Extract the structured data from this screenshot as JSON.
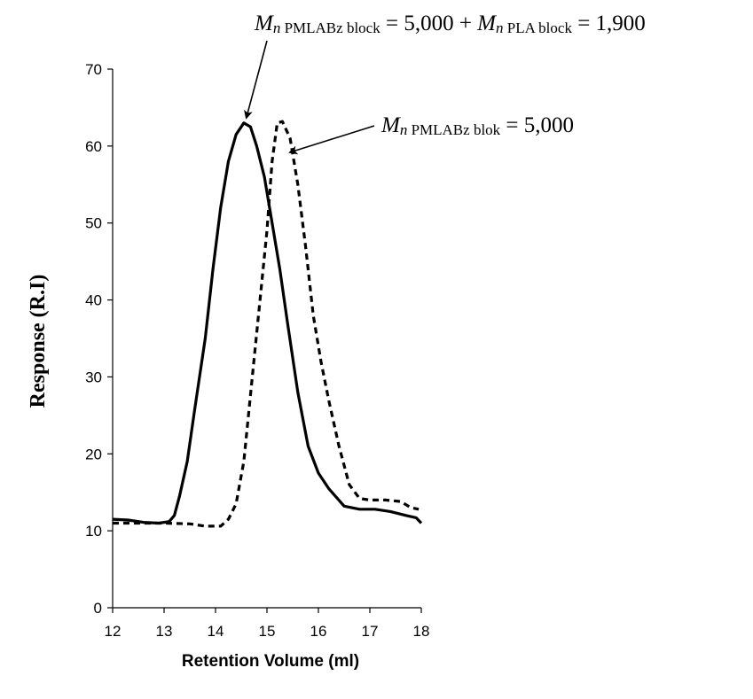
{
  "chart_data": {
    "type": "line",
    "xlabel": "Retention Volume (ml)",
    "ylabel": "Response (R.I)",
    "xlim": [
      12,
      18
    ],
    "ylim": [
      0,
      70
    ],
    "xticks": [
      "12",
      "13",
      "14",
      "15",
      "16",
      "17",
      "18"
    ],
    "yticks": [
      "0",
      "10",
      "20",
      "30",
      "40",
      "50",
      "60",
      "70"
    ],
    "grid": false,
    "series": [
      {
        "line_style": "solid",
        "color": "#000000",
        "points": [
          [
            12.0,
            11.5
          ],
          [
            12.3,
            11.4
          ],
          [
            12.6,
            11.1
          ],
          [
            12.9,
            11.0
          ],
          [
            13.1,
            11.2
          ],
          [
            13.2,
            12.0
          ],
          [
            13.3,
            14.5
          ],
          [
            13.45,
            19.0
          ],
          [
            13.6,
            26.0
          ],
          [
            13.8,
            35.0
          ],
          [
            13.95,
            44.0
          ],
          [
            14.1,
            52.0
          ],
          [
            14.25,
            58.0
          ],
          [
            14.4,
            61.5
          ],
          [
            14.55,
            63.0
          ],
          [
            14.68,
            62.5
          ],
          [
            14.8,
            60.0
          ],
          [
            14.95,
            56.0
          ],
          [
            15.1,
            50.0
          ],
          [
            15.25,
            44.0
          ],
          [
            15.4,
            37.0
          ],
          [
            15.6,
            28.0
          ],
          [
            15.8,
            21.0
          ],
          [
            16.0,
            17.5
          ],
          [
            16.2,
            15.5
          ],
          [
            16.5,
            13.2
          ],
          [
            16.8,
            12.8
          ],
          [
            17.1,
            12.8
          ],
          [
            17.4,
            12.5
          ],
          [
            17.7,
            12.0
          ],
          [
            17.9,
            11.7
          ],
          [
            18.0,
            11.0
          ]
        ]
      },
      {
        "line_style": "dashed",
        "color": "#000000",
        "points": [
          [
            12.0,
            11.0
          ],
          [
            12.5,
            11.0
          ],
          [
            13.0,
            11.0
          ],
          [
            13.5,
            10.9
          ],
          [
            13.8,
            10.6
          ],
          [
            14.1,
            10.6
          ],
          [
            14.25,
            11.5
          ],
          [
            14.4,
            13.5
          ],
          [
            14.55,
            19.0
          ],
          [
            14.7,
            29.0
          ],
          [
            14.85,
            39.0
          ],
          [
            15.0,
            49.0
          ],
          [
            15.1,
            58.0
          ],
          [
            15.2,
            63.0
          ],
          [
            15.3,
            63.2
          ],
          [
            15.45,
            61.0
          ],
          [
            15.6,
            55.0
          ],
          [
            15.75,
            47.0
          ],
          [
            15.9,
            38.0
          ],
          [
            16.05,
            32.0
          ],
          [
            16.2,
            27.0
          ],
          [
            16.4,
            21.0
          ],
          [
            16.6,
            16.0
          ],
          [
            16.8,
            14.2
          ],
          [
            17.0,
            14.0
          ],
          [
            17.3,
            14.0
          ],
          [
            17.6,
            13.8
          ],
          [
            17.8,
            13.0
          ],
          [
            17.95,
            12.8
          ]
        ]
      }
    ],
    "annotations": [
      {
        "parts": [
          {
            "text": "M",
            "italic": true
          },
          {
            "text": "n",
            "italic": true,
            "small": true
          },
          {
            "text": " PMLABz block",
            "small": true
          },
          {
            "text": " = 5,000 + "
          },
          {
            "text": "M",
            "italic": true
          },
          {
            "text": "n",
            "italic": true,
            "small": true
          },
          {
            "text": " PLA block",
            "small": true
          },
          {
            "text": " = 1,900"
          }
        ],
        "arrow_to": [
          14.6,
          63.0
        ]
      },
      {
        "parts": [
          {
            "text": "M",
            "italic": true
          },
          {
            "text": "n",
            "italic": true,
            "small": true
          },
          {
            "text": " PMLABz blok",
            "small": true
          },
          {
            "text": " = 5,000"
          }
        ],
        "arrow_to": [
          15.45,
          58.5
        ]
      }
    ]
  }
}
